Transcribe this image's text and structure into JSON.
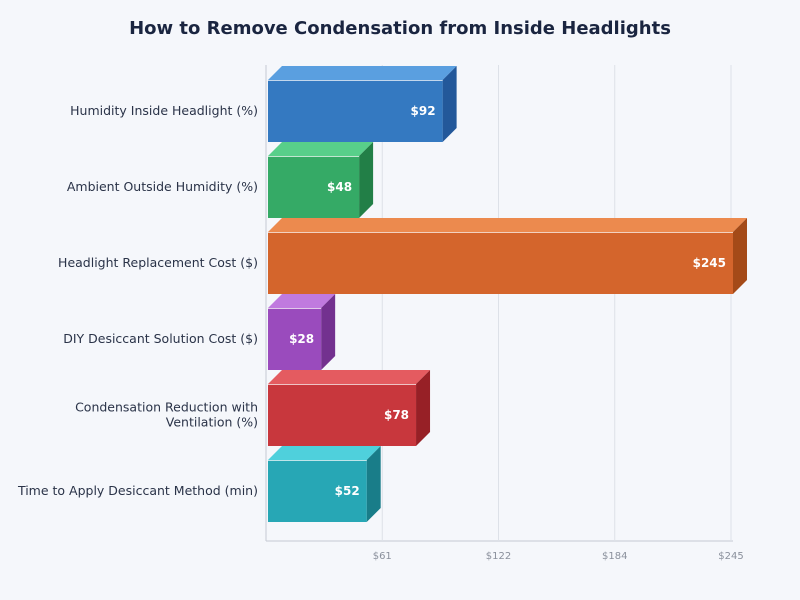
{
  "chart_data": {
    "type": "bar",
    "orientation": "horizontal",
    "title": "How to Remove Condensation from Inside Headlights",
    "xlabel": "",
    "ylabel": "",
    "xlim": [
      0,
      245
    ],
    "grid": true,
    "x_ticks": [
      "$61",
      "$122",
      "$184",
      "$245"
    ],
    "x_tick_values": [
      61.25,
      122.5,
      183.75,
      245
    ],
    "categories": [
      [
        "Humidity Inside Headlight (%)"
      ],
      [
        "Ambient Outside Humidity (%)"
      ],
      [
        "Headlight Replacement Cost ($)"
      ],
      [
        "DIY Desiccant Solution Cost ($)"
      ],
      [
        "Condensation Reduction with",
        "Ventilation (%)"
      ],
      [
        "Time to Apply Desiccant Method (min)"
      ]
    ],
    "values": [
      92,
      48,
      245,
      28,
      78,
      52
    ],
    "labels": [
      "$92",
      "$48",
      "$245",
      "$28",
      "$78",
      "$52"
    ],
    "colors": [
      {
        "front": "#3479c1",
        "top": "#5a9fe0",
        "side": "#23589a"
      },
      {
        "front": "#35aa66",
        "top": "#58cf8a",
        "side": "#227f47"
      },
      {
        "front": "#d4652c",
        "top": "#ec8a4e",
        "side": "#a44a18"
      },
      {
        "front": "#9a4bbd",
        "top": "#c07adf",
        "side": "#73318f"
      },
      {
        "front": "#c8373d",
        "top": "#e45b60",
        "side": "#972026"
      },
      {
        "front": "#27a7b5",
        "top": "#4fd0dc",
        "side": "#197d89"
      }
    ]
  }
}
